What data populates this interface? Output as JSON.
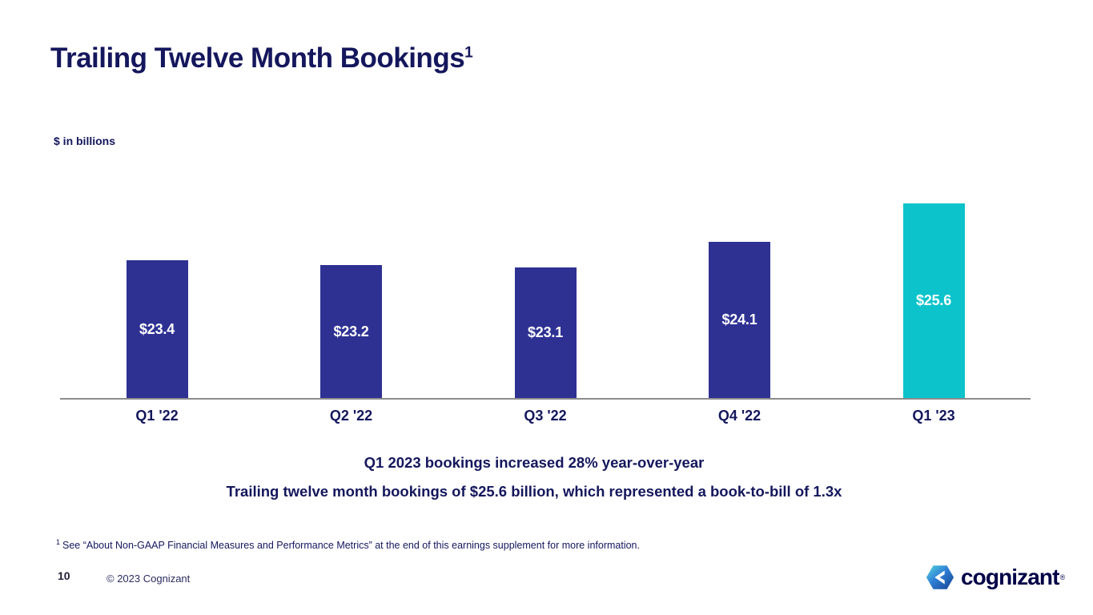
{
  "slide": {
    "title": "Trailing Twelve Month Bookings",
    "title_superscript": "1",
    "units_label": "$ in billions",
    "caption_line1": "Q1 2023 bookings increased 28% year-over-year",
    "caption_line2": "Trailing twelve month bookings of $25.6 billion, which represented a book-to-bill of 1.3x",
    "footnote_superscript": "1",
    "footnote_text": "See “About Non-GAAP Financial Measures and Performance Metrics” at the end of this earnings supplement for more information.",
    "page_number": "10",
    "copyright": "© 2023 Cognizant",
    "logo_text": "cognizant",
    "logo_registered": "®"
  },
  "colors": {
    "bar_navy": "#2e3192",
    "bar_teal": "#0cc3cb",
    "text_navy": "#14175c",
    "axis_gray": "#8c8c8c",
    "logo_navy": "#000048",
    "value_label_white": "#ffffff"
  },
  "chart_data": {
    "type": "bar",
    "title": "Trailing Twelve Month Bookings",
    "ylabel": "$ in billions",
    "categories": [
      "Q1 '22",
      "Q2 '22",
      "Q3 '22",
      "Q4 '22",
      "Q1 '23"
    ],
    "values": [
      23.4,
      23.2,
      23.1,
      24.1,
      25.6
    ],
    "value_labels": [
      "$23.4",
      "$23.2",
      "$23.1",
      "$24.1",
      "$25.6"
    ],
    "bar_colors": [
      "#2e3192",
      "#2e3192",
      "#2e3192",
      "#2e3192",
      "#0cc3cb"
    ],
    "ylim": [
      18,
      27.3
    ],
    "grid": false,
    "legend": false,
    "value_label_position": "centered-inside-bar",
    "highlighted_bar_index": 4,
    "note": "truncated axis; bars drawn from implied baseline of 18"
  }
}
